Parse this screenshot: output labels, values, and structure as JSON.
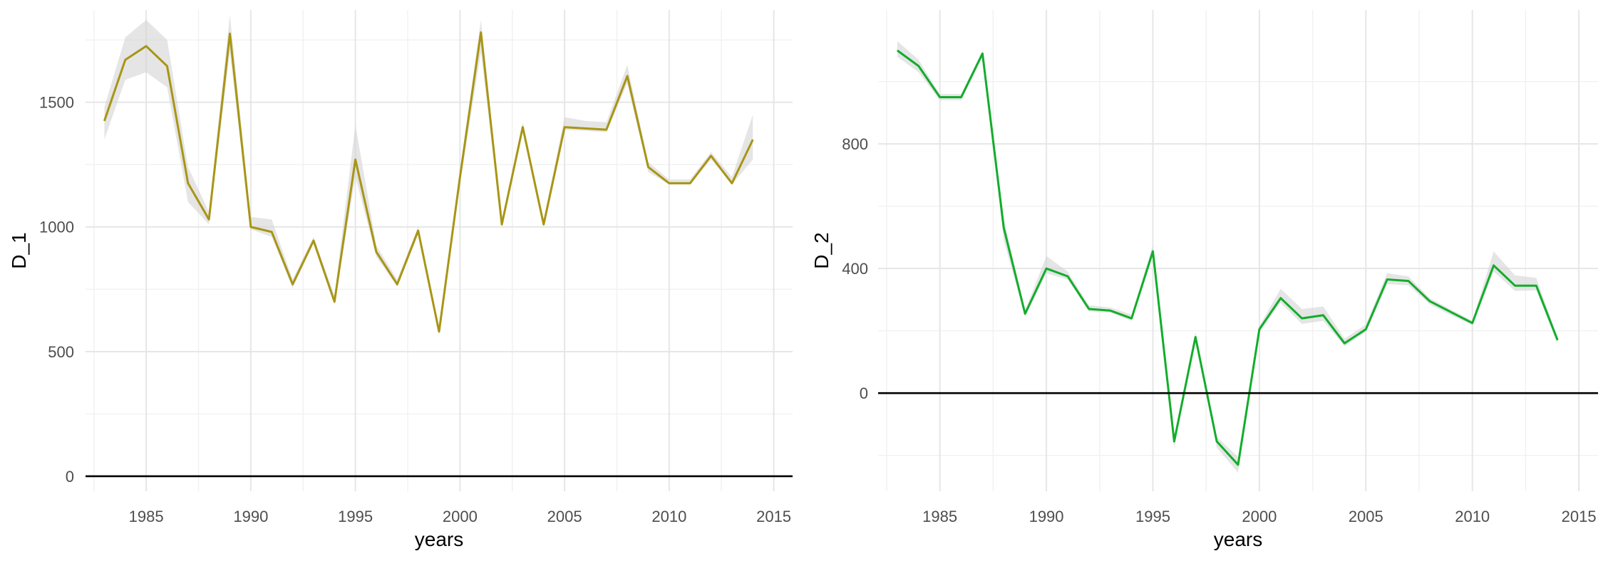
{
  "chart_data": [
    {
      "type": "line",
      "name": "D_1 panel",
      "xlabel": "years",
      "ylabel": "D_1",
      "xlim": [
        1982.1,
        2015.9
      ],
      "ylim": [
        -60,
        1870
      ],
      "x_ticks": [
        1985,
        1990,
        1995,
        2000,
        2005,
        2010,
        2015
      ],
      "y_ticks": [
        0,
        500,
        1000,
        1500
      ],
      "zero_line": 0,
      "grid": true,
      "line_color": "#a89515",
      "band_color": "#d4d4d4",
      "series": [
        {
          "x": [
            1983,
            1984,
            1985,
            1986,
            1987,
            1988,
            1989,
            1990,
            1991,
            1992,
            1993,
            1994,
            1995,
            1996,
            1997,
            1998,
            1999,
            2000,
            2001,
            2002,
            2003,
            2004,
            2005,
            2006,
            2007,
            2008,
            2009,
            2010,
            2011,
            2012,
            2013,
            2014
          ],
          "values": [
            1425,
            1670,
            1725,
            1645,
            1175,
            1030,
            1775,
            1000,
            980,
            770,
            945,
            700,
            1270,
            900,
            770,
            985,
            580,
            1200,
            1780,
            1010,
            1400,
            1010,
            1400,
            1395,
            1390,
            1605,
            1240,
            1175,
            1175,
            1285,
            1175,
            1350
          ],
          "lower": [
            1350,
            1590,
            1620,
            1560,
            1100,
            1010,
            1700,
            990,
            960,
            755,
            935,
            690,
            1200,
            880,
            760,
            970,
            570,
            1170,
            1700,
            1000,
            1380,
            1000,
            1390,
            1385,
            1380,
            1575,
            1220,
            1170,
            1170,
            1270,
            1170,
            1270
          ],
          "upper": [
            1480,
            1760,
            1830,
            1750,
            1240,
            1060,
            1850,
            1040,
            1030,
            790,
            960,
            725,
            1410,
            925,
            790,
            1000,
            595,
            1230,
            1830,
            1030,
            1420,
            1030,
            1440,
            1425,
            1420,
            1650,
            1260,
            1190,
            1190,
            1300,
            1200,
            1450
          ]
        }
      ]
    },
    {
      "type": "line",
      "name": "D_2 panel",
      "xlabel": "years",
      "ylabel": "D_2",
      "xlim": [
        1982.1,
        2015.9
      ],
      "ylim": [
        -315,
        1230
      ],
      "x_ticks": [
        1985,
        1990,
        1995,
        2000,
        2005,
        2010,
        2015
      ],
      "y_ticks": [
        0,
        400,
        800
      ],
      "zero_line": 0,
      "grid": true,
      "line_color": "#12ad2b",
      "band_color": "#d4d4d4",
      "series": [
        {
          "x": [
            1983,
            1984,
            1985,
            1986,
            1987,
            1988,
            1989,
            1990,
            1991,
            1992,
            1993,
            1994,
            1995,
            1996,
            1997,
            1998,
            1999,
            2000,
            2001,
            2002,
            2003,
            2004,
            2005,
            2006,
            2007,
            2008,
            2009,
            2010,
            2011,
            2012,
            2013,
            2014
          ],
          "values": [
            1100,
            1050,
            950,
            950,
            1090,
            530,
            255,
            400,
            375,
            270,
            265,
            240,
            455,
            -155,
            180,
            -155,
            -230,
            205,
            305,
            240,
            250,
            160,
            205,
            365,
            360,
            295,
            260,
            225,
            410,
            345,
            345,
            170
          ],
          "lower": [
            1080,
            1030,
            940,
            940,
            1080,
            490,
            245,
            385,
            365,
            262,
            258,
            232,
            440,
            -175,
            170,
            -175,
            -255,
            195,
            290,
            222,
            232,
            150,
            196,
            350,
            346,
            285,
            250,
            218,
            390,
            328,
            330,
            160
          ],
          "upper": [
            1130,
            1070,
            960,
            960,
            1100,
            560,
            265,
            440,
            390,
            282,
            275,
            252,
            475,
            -140,
            195,
            -140,
            -205,
            215,
            335,
            270,
            278,
            175,
            220,
            385,
            375,
            305,
            268,
            232,
            455,
            378,
            370,
            180
          ]
        }
      ]
    }
  ]
}
